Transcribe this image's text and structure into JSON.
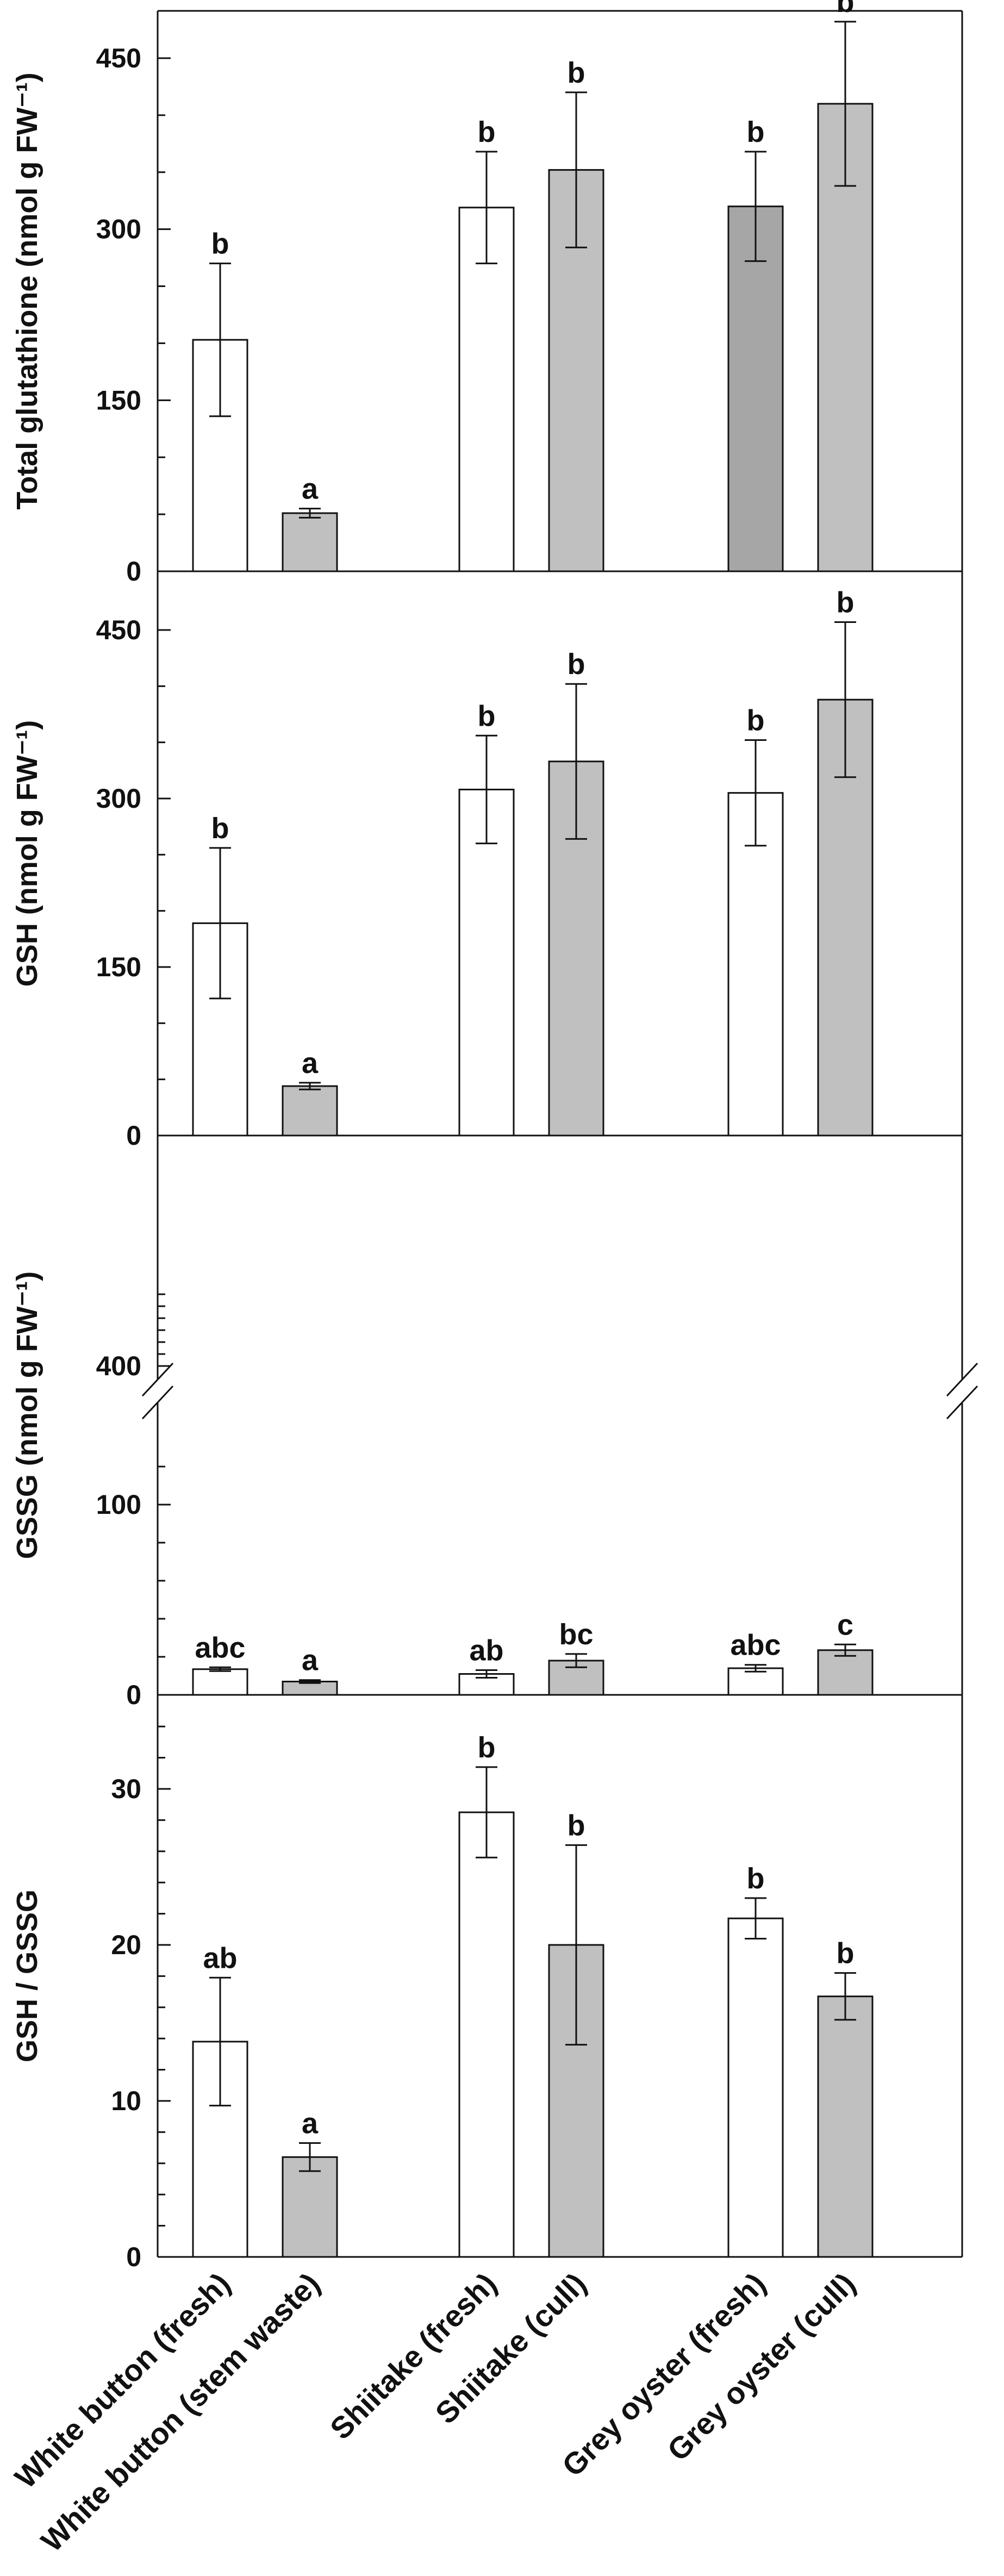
{
  "categories": [
    "White button (fresh)",
    "White button (stem waste)",
    "Shiitake (fresh)",
    "Shiitake (cull)",
    "Grey oyster (fresh)",
    "Grey oyster (cull)"
  ],
  "colors": {
    "fresh": "#ffffff",
    "cull": "#c0c0c0",
    "dark": "#a6a6a6",
    "stroke": "#111111"
  },
  "chart_data": [
    {
      "type": "bar",
      "id": "total-glutathione",
      "ylabel": "Total glutathione (nmol g FW⁻¹)",
      "ylim": [
        0,
        550
      ],
      "yticks": [
        0,
        150,
        300,
        450
      ],
      "ytick_labels": [
        "0",
        "150",
        "300",
        "450"
      ],
      "categories": [
        "White button (fresh)",
        "White button (stem waste)",
        "Shiitake (fresh)",
        "Shiitake (cull)",
        "Grey oyster (fresh)",
        "Grey oyster (cull)"
      ],
      "values": [
        203,
        51,
        319,
        352,
        320,
        410
      ],
      "errors": [
        67,
        4,
        49,
        68,
        48,
        72
      ],
      "letters": [
        "b",
        "a",
        "b",
        "b",
        "b",
        "b"
      ],
      "fills": [
        "fresh",
        "cull",
        "fresh",
        "cull",
        "dark",
        "cull"
      ]
    },
    {
      "type": "bar",
      "id": "gsh",
      "ylabel": "GSH (nmol g FW⁻¹)",
      "ylim": [
        0,
        500
      ],
      "yticks": [
        0,
        150,
        300,
        450
      ],
      "ytick_labels": [
        "0",
        "150",
        "300",
        "450"
      ],
      "categories": [
        "White button (fresh)",
        "White button (stem waste)",
        "Shiitake (fresh)",
        "Shiitake (cull)",
        "Grey oyster (fresh)",
        "Grey oyster (cull)"
      ],
      "values": [
        189,
        44,
        308,
        333,
        305,
        388
      ],
      "errors": [
        67,
        3,
        48,
        69,
        47,
        69
      ],
      "letters": [
        "b",
        "a",
        "b",
        "b",
        "b",
        "b"
      ],
      "fills": [
        "fresh",
        "cull",
        "fresh",
        "cull",
        "fresh",
        "cull"
      ]
    },
    {
      "type": "bar",
      "id": "gssg",
      "ylabel": "GSSG (nmol g FW⁻¹)",
      "ylim": [
        0,
        140
      ],
      "axis_break": [
        110,
        380
      ],
      "yticks": [
        0,
        100,
        400
      ],
      "ytick_labels": [
        "0",
        "100",
        "400"
      ],
      "categories": [
        "White button (fresh)",
        "White button (stem waste)",
        "Shiitake (fresh)",
        "Shiitake (cull)",
        "Grey oyster (fresh)",
        "Grey oyster (cull)"
      ],
      "values": [
        13.5,
        7.0,
        11.0,
        18.0,
        14.0,
        23.5
      ],
      "errors": [
        1.0,
        0.8,
        2.0,
        3.5,
        1.8,
        3.0
      ],
      "letters": [
        "abc",
        "a",
        "ab",
        "bc",
        "abc",
        "c"
      ],
      "fills": [
        "fresh",
        "cull",
        "fresh",
        "cull",
        "fresh",
        "cull"
      ]
    },
    {
      "type": "bar",
      "id": "gsh-gssg-ratio",
      "ylabel": "GSH / GSSG",
      "ylim": [
        0,
        36
      ],
      "yticks": [
        0,
        10,
        20,
        30
      ],
      "ytick_labels": [
        "0",
        "10",
        "20",
        "30"
      ],
      "categories": [
        "White button (fresh)",
        "White button (stem waste)",
        "Shiitake (fresh)",
        "Shiitake (cull)",
        "Grey oyster (fresh)",
        "Grey oyster (cull)"
      ],
      "values": [
        13.8,
        6.4,
        28.5,
        20.0,
        21.7,
        16.7
      ],
      "errors": [
        4.1,
        0.9,
        2.9,
        6.4,
        1.3,
        1.5
      ],
      "letters": [
        "ab",
        "a",
        "b",
        "b",
        "b",
        "b"
      ],
      "fills": [
        "fresh",
        "cull",
        "fresh",
        "cull",
        "fresh",
        "cull"
      ]
    }
  ]
}
